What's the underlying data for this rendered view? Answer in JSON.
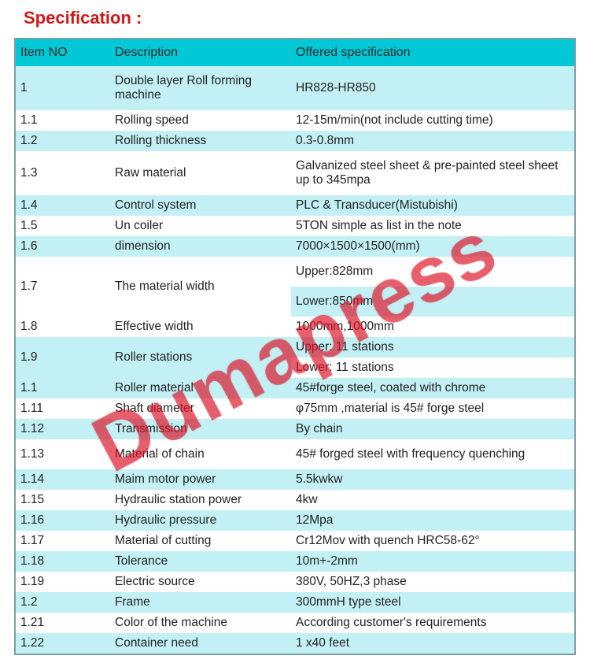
{
  "title_text": "Specification :",
  "title_color": "#d01818",
  "header_bg": "#00c8d6",
  "row_alt_bg": "#c2f0f5",
  "row_bg": "#ffffff",
  "border_color": "#7b9ea8",
  "watermark_text": "Dumapress",
  "watermark_color": "rgba(220,20,40,0.55)",
  "columns": [
    "Item NO",
    "Description",
    "Offered specification"
  ],
  "rows": [
    {
      "no": "1",
      "desc": "Double layer Roll forming machine",
      "spec": "HR828-HR850",
      "alt": true,
      "tall": true
    },
    {
      "no": "1.1",
      "desc": "Rolling speed",
      "spec": "12-15m/min(not include cutting time)",
      "alt": false
    },
    {
      "no": "1.2",
      "desc": "Rolling thickness",
      "spec": "0.3-0.8mm",
      "alt": true
    },
    {
      "no": "1.3",
      "desc": "Raw material",
      "spec": "Galvanized steel sheet & pre-painted steel sheet up to 345mpa",
      "alt": false,
      "tall": true
    },
    {
      "no": "1.4",
      "desc": "Control system",
      "spec": "PLC & Transducer(Mistubishi)",
      "alt": true
    },
    {
      "no": "1.5",
      "desc": "Un coiler",
      "spec": "5TON simple as list in the note",
      "alt": false
    },
    {
      "no": "1.6",
      "desc": "dimension",
      "spec": "7000×1500×1500(mm)",
      "alt": true
    },
    {
      "no": "1.7",
      "desc": "The material width",
      "spec": "Upper:828mm",
      "alt": false,
      "rowspan": 2,
      "tall": true
    },
    {
      "spec": "Lower:850mm",
      "alt": true,
      "contspec": true,
      "tall": true
    },
    {
      "no": "1.8",
      "desc": "Effective width",
      "spec": "1000mm,1000mm",
      "alt": false
    },
    {
      "no": "1.9",
      "desc": "Roller stations",
      "spec": "Upper: 11 stations",
      "alt": true,
      "rowspan": 2
    },
    {
      "spec": "Lower: 11 stations",
      "alt": false,
      "contspec": true
    },
    {
      "no": "1.1",
      "desc": "Roller material",
      "spec": "45#forge steel, coated with chrome",
      "alt": true
    },
    {
      "no": "1.11",
      "desc": "Shaft diameter",
      "spec": "φ75mm ,material is 45# forge steel",
      "alt": false
    },
    {
      "no": "1.12",
      "desc": "Transmission",
      "spec": "By chain",
      "alt": true
    },
    {
      "no": "1.13",
      "desc": "Material of chain",
      "spec": "45# forged steel with frequency quenching",
      "alt": false,
      "tall": true
    },
    {
      "no": "1.14",
      "desc": "Maim motor power",
      "spec": "5.5kwkw",
      "alt": true
    },
    {
      "no": "1.15",
      "desc": "Hydraulic station power",
      "spec": "4kw",
      "alt": false
    },
    {
      "no": "1.16",
      "desc": "Hydraulic pressure",
      "spec": "12Mpa",
      "alt": true
    },
    {
      "no": "1.17",
      "desc": "Material of cutting",
      "spec": "Cr12Mov with quench HRC58-62°",
      "alt": false
    },
    {
      "no": "1.18",
      "desc": "Tolerance",
      "spec": "10m+-2mm",
      "alt": true
    },
    {
      "no": "1.19",
      "desc": "Electric source",
      "spec": "380V, 50HZ,3 phase",
      "alt": false
    },
    {
      "no": "1.2",
      "desc": "Frame",
      "spec": "300mmH type steel",
      "alt": true
    },
    {
      "no": "1.21",
      "desc": "Color of the machine",
      "spec": "According customer's requirements",
      "alt": false
    },
    {
      "no": "1.22",
      "desc": "Container need",
      "spec": "1 x40 feet",
      "alt": true
    }
  ]
}
